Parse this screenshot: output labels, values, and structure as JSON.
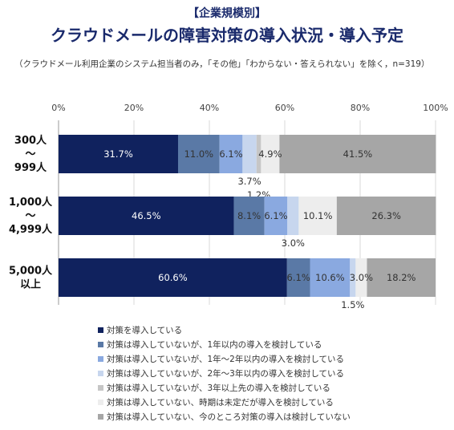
{
  "title_line1": "【企業規模別】",
  "title_line2": "クラウドメールの障害対策の導入状況・導入予定",
  "note": "（クラウドメール利用企業のシステム担当者のみ，「その他」「わからない・答えられない」を除く，n=319）",
  "chart_data": {
    "type": "bar",
    "orientation": "horizontal",
    "stacked": "percent",
    "title": "クラウドメールの障害対策の導入状況・導入予定",
    "x_ticks": [
      "0%",
      "20%",
      "40%",
      "60%",
      "80%",
      "100%"
    ],
    "xlim": [
      0,
      100
    ],
    "categories": [
      "300人\n～\n999人",
      "1,000人\n～\n4,999人",
      "5,000人\n以上"
    ],
    "category_lines": [
      [
        "300人",
        "～",
        "999人"
      ],
      [
        "1,000人",
        "～",
        "4,999人"
      ],
      [
        "5,000人",
        "以上"
      ]
    ],
    "series": [
      {
        "name": "対策を導入している",
        "color": "#10225e",
        "text": "#ffffff",
        "values": [
          31.7,
          46.5,
          60.6
        ]
      },
      {
        "name": "対策は導入していないが、1年以内の導入を検討している",
        "color": "#5a79a6",
        "text": "#333333",
        "values": [
          11.0,
          8.1,
          6.1
        ]
      },
      {
        "name": "対策は導入していないが、1年～2年以内の導入を検討している",
        "color": "#8aa9e0",
        "text": "#333333",
        "values": [
          6.1,
          6.1,
          10.6
        ]
      },
      {
        "name": "対策は導入していないが、2年～3年以内の導入を検討している",
        "color": "#c7d6ee",
        "text": "#333333",
        "values": [
          3.7,
          3.0,
          1.5
        ]
      },
      {
        "name": "対策は導入していないが、3年以上先の導入を検討している",
        "color": "#c6c6c6",
        "text": "#333333",
        "values": [
          1.2,
          0,
          0
        ]
      },
      {
        "name": "対策は導入していない、時期は未定だが導入を検討している",
        "color": "#ededed",
        "text": "#333333",
        "values": [
          4.9,
          10.1,
          3.0
        ]
      },
      {
        "name": "対策は導入していない、今のところ対策の導入は検討していない",
        "color": "#a6a6a6",
        "text": "#333333",
        "values": [
          41.5,
          26.3,
          18.2
        ]
      }
    ],
    "data_labels": [
      [
        {
          "series": 0,
          "text": "31.7%"
        },
        {
          "series": 1,
          "text": "11.0%"
        },
        {
          "series": 2,
          "text": "6.1%"
        },
        {
          "series": 3,
          "text": "3.7%",
          "placement": "below"
        },
        {
          "series": 4,
          "text": "1.2%",
          "placement": "below2"
        },
        {
          "series": 5,
          "text": "4.9%"
        },
        {
          "series": 6,
          "text": "41.5%"
        }
      ],
      [
        {
          "series": 0,
          "text": "46.5%"
        },
        {
          "series": 1,
          "text": "8.1%"
        },
        {
          "series": 2,
          "text": "6.1%"
        },
        {
          "series": 3,
          "text": "3.0%",
          "placement": "below"
        },
        {
          "series": 5,
          "text": "10.1%"
        },
        {
          "series": 6,
          "text": "26.3%"
        }
      ],
      [
        {
          "series": 0,
          "text": "60.6%"
        },
        {
          "series": 1,
          "text": "6.1%"
        },
        {
          "series": 2,
          "text": "10.6%"
        },
        {
          "series": 3,
          "text": "1.5%",
          "placement": "below"
        },
        {
          "series": 5,
          "text": "3.0%"
        },
        {
          "series": 6,
          "text": "18.2%"
        }
      ]
    ],
    "grid": true,
    "legend_position": "bottom"
  }
}
